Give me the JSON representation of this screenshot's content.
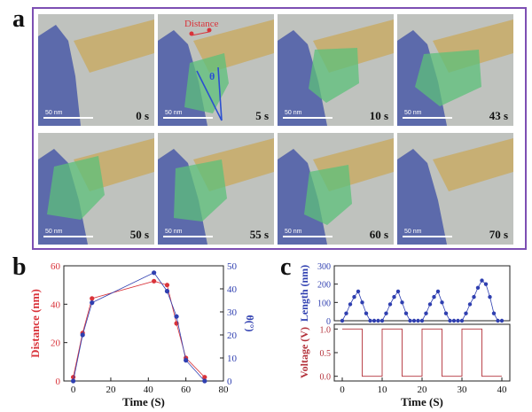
{
  "panel_letters": {
    "a": "a",
    "b": "b",
    "c": "c"
  },
  "colors": {
    "frame": "#7d4fb3",
    "blue_tip": "#4a5aa8",
    "gold_wire": "#c8ad6c",
    "green_region": "#5cc07a",
    "distance_red": "#d9333a",
    "theta_blue": "#2b4fd1",
    "voltage_red": "#b3313a",
    "length_blue": "#2f3fb0"
  },
  "annotations": {
    "distance": "Distance",
    "theta": "θ"
  },
  "tiles": [
    {
      "time": "0 s",
      "scale": "50 nm"
    },
    {
      "time": "5 s",
      "scale": "50 nm"
    },
    {
      "time": "10 s",
      "scale": "50 nm"
    },
    {
      "time": "43 s",
      "scale": "50 nm"
    },
    {
      "time": "50 s",
      "scale": "50 nm"
    },
    {
      "time": "55 s",
      "scale": "50 nm"
    },
    {
      "time": "60 s",
      "scale": "50 nm"
    },
    {
      "time": "70 s",
      "scale": "50 nm"
    }
  ],
  "chart_data": [
    {
      "type": "line",
      "panel": "b",
      "xlabel": "Time (S)",
      "ylabel_left": "Distance (nm)",
      "ylabel_right": "θ(°)",
      "xlim": [
        -5,
        80
      ],
      "ylim_left": [
        0,
        60
      ],
      "ylim_right": [
        0,
        50
      ],
      "x_ticks": [
        0,
        20,
        40,
        60,
        80
      ],
      "y_ticks_left": [
        0,
        20,
        40,
        60
      ],
      "y_ticks_right": [
        0,
        10,
        20,
        30,
        40,
        50
      ],
      "series": [
        {
          "axis": "left",
          "x": [
            0,
            5,
            10,
            43,
            50,
            55,
            60,
            70
          ],
          "y": [
            2,
            25,
            43,
            52,
            50,
            30,
            12,
            2
          ]
        },
        {
          "axis": "right",
          "x": [
            0,
            5,
            10,
            43,
            50,
            55,
            60,
            70
          ],
          "y": [
            0,
            20,
            34,
            47,
            39,
            28,
            9,
            0
          ]
        }
      ]
    },
    {
      "type": "line",
      "panel": "c",
      "xlabel": "Time (S)",
      "top": {
        "ylabel": "Length (nm)",
        "xlim": [
          -2,
          42
        ],
        "ylim": [
          0,
          300
        ],
        "y_ticks": [
          0,
          100,
          200,
          300
        ],
        "x": [
          0,
          1,
          2,
          3,
          4,
          5,
          6,
          7,
          8,
          9,
          10,
          11,
          12,
          13,
          14,
          15,
          16,
          17,
          18,
          19,
          20,
          21,
          22,
          23,
          24,
          25,
          26,
          27,
          28,
          29,
          30,
          31,
          32,
          33,
          34,
          35,
          36,
          37,
          38,
          39,
          40
        ],
        "y": [
          0,
          40,
          90,
          130,
          160,
          100,
          40,
          0,
          0,
          0,
          0,
          40,
          90,
          130,
          160,
          100,
          40,
          0,
          0,
          0,
          0,
          40,
          90,
          130,
          160,
          100,
          40,
          0,
          0,
          0,
          0,
          40,
          90,
          130,
          180,
          220,
          200,
          130,
          40,
          0,
          0
        ]
      },
      "bottom": {
        "ylabel": "Voltage (V)",
        "xlim": [
          -2,
          42
        ],
        "ylim": [
          -0.1,
          1.1
        ],
        "y_ticks": [
          "0.0",
          "0.5",
          "1.0"
        ],
        "x_ticks": [
          0,
          10,
          20,
          30,
          40
        ],
        "x": [
          0,
          5,
          5,
          10,
          10,
          15,
          15,
          20,
          20,
          25,
          25,
          30,
          30,
          35,
          35,
          40
        ],
        "y": [
          1,
          1,
          0,
          0,
          1,
          1,
          0,
          0,
          1,
          1,
          0,
          0,
          1,
          1,
          0,
          0
        ]
      }
    }
  ]
}
